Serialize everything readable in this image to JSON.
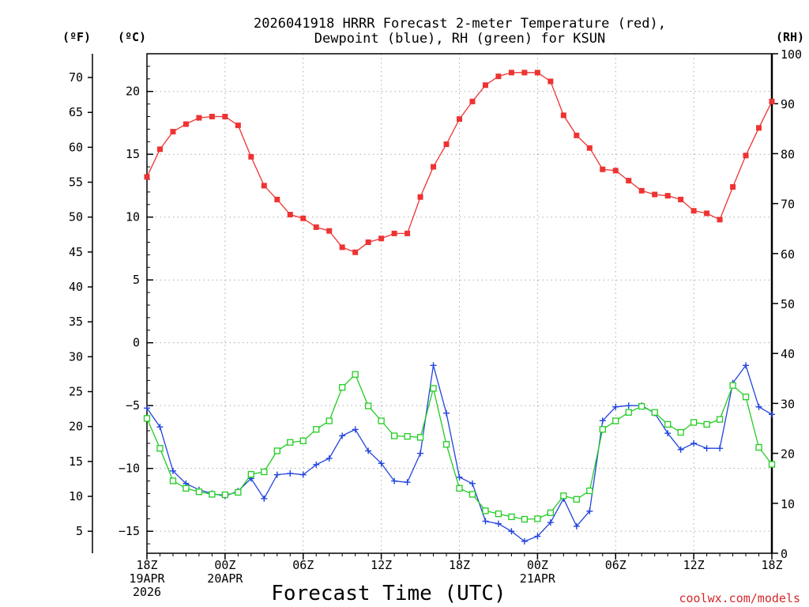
{
  "chart_data": {
    "type": "line",
    "title_line1": "2026041918 HRRR Forecast 2-meter Temperature (red),",
    "title_line2": "Dewpoint (blue), RH (green) for KSUN",
    "xlabel": "Forecast Time (UTC)",
    "credit": "coolwx.com/models",
    "units": {
      "fahrenheit": "(ºF)",
      "celsius": "(ºC)",
      "rh": "(RH)"
    },
    "x_range_hours": [
      0,
      48
    ],
    "ylim_celsius": [
      -16.75,
      23
    ],
    "ylim_rh": [
      0,
      100
    ],
    "celsius_ticks": [
      "20",
      "15",
      "10",
      "5",
      "0",
      "−5",
      "−10",
      "−15"
    ],
    "celsius_tick_values": [
      20,
      15,
      10,
      5,
      0,
      -5,
      -10,
      -15
    ],
    "fahrenheit_ticks": [
      "70",
      "65",
      "60",
      "55",
      "50",
      "45",
      "40",
      "35",
      "30",
      "25",
      "20",
      "15",
      "10",
      "5"
    ],
    "fahrenheit_tick_values": [
      70,
      65,
      60,
      55,
      50,
      45,
      40,
      35,
      30,
      25,
      20,
      15,
      10,
      5
    ],
    "rh_ticks": [
      "100",
      "90",
      "80",
      "70",
      "60",
      "50",
      "40",
      "30",
      "20",
      "10",
      "0"
    ],
    "rh_tick_values": [
      100,
      90,
      80,
      70,
      60,
      50,
      40,
      30,
      20,
      10,
      0
    ],
    "x_ticks": [
      {
        "hour": 0,
        "lines": [
          "18Z",
          "19APR",
          "2026"
        ]
      },
      {
        "hour": 6,
        "lines": [
          "00Z",
          "20APR"
        ]
      },
      {
        "hour": 12,
        "lines": [
          "06Z"
        ]
      },
      {
        "hour": 18,
        "lines": [
          "12Z"
        ]
      },
      {
        "hour": 24,
        "lines": [
          "18Z"
        ]
      },
      {
        "hour": 30,
        "lines": [
          "00Z",
          "21APR"
        ]
      },
      {
        "hour": 36,
        "lines": [
          "06Z"
        ]
      },
      {
        "hour": 42,
        "lines": [
          "12Z"
        ]
      },
      {
        "hour": 48,
        "lines": [
          "18Z"
        ]
      }
    ],
    "series": [
      {
        "name": "Temperature",
        "color": "#ee3333",
        "axis": "celsius",
        "marker": "filled-square",
        "values": [
          13.2,
          15.4,
          16.8,
          17.4,
          17.9,
          18.0,
          18.0,
          17.3,
          14.8,
          12.5,
          11.4,
          10.2,
          9.9,
          9.2,
          8.9,
          7.6,
          7.2,
          8.0,
          8.3,
          8.7,
          8.7,
          11.6,
          14.0,
          15.8,
          17.8,
          19.2,
          20.5,
          21.2,
          21.5,
          21.5,
          21.5,
          20.8,
          18.1,
          16.5,
          15.5,
          13.8,
          13.7,
          12.9,
          12.1,
          11.8,
          11.7,
          11.4,
          10.5,
          10.3,
          9.8,
          12.4,
          14.9,
          17.1,
          19.2
        ]
      },
      {
        "name": "Dewpoint",
        "color": "#2244dd",
        "axis": "celsius",
        "marker": "plus",
        "values": [
          -5.2,
          -6.7,
          -10.2,
          -11.2,
          -11.7,
          -12.0,
          -12.2,
          -11.8,
          -10.8,
          -12.4,
          -10.5,
          -10.4,
          -10.5,
          -9.7,
          -9.2,
          -7.4,
          -6.9,
          -8.6,
          -9.6,
          -11.0,
          -11.1,
          -8.8,
          -1.8,
          -5.6,
          -10.7,
          -11.2,
          -14.2,
          -14.4,
          -15.0,
          -15.8,
          -15.4,
          -14.3,
          -12.4,
          -14.6,
          -13.4,
          -6.2,
          -5.1,
          -5.0,
          -5.0,
          -5.6,
          -7.2,
          -8.5,
          -8.0,
          -8.4,
          -8.4,
          -3.2,
          -1.8,
          -5.1,
          -5.7
        ]
      },
      {
        "name": "RH",
        "color": "#22cc22",
        "axis": "rh",
        "marker": "open-square",
        "values": [
          27,
          21,
          14.5,
          13,
          12.3,
          11.8,
          11.7,
          12.2,
          15.8,
          16.3,
          20.5,
          22.2,
          22.5,
          24.8,
          26.5,
          33.2,
          35.8,
          29.5,
          26.5,
          23.5,
          23.4,
          23.2,
          33,
          21.8,
          13,
          11.8,
          8.5,
          7.9,
          7.3,
          6.8,
          6.9,
          8.1,
          11.5,
          10.8,
          12.5,
          24.8,
          26.5,
          28.2,
          29.4,
          28.2,
          25.8,
          24.2,
          26.2,
          25.8,
          26.8,
          33.6,
          31.3,
          21.2,
          17.8
        ]
      }
    ]
  }
}
